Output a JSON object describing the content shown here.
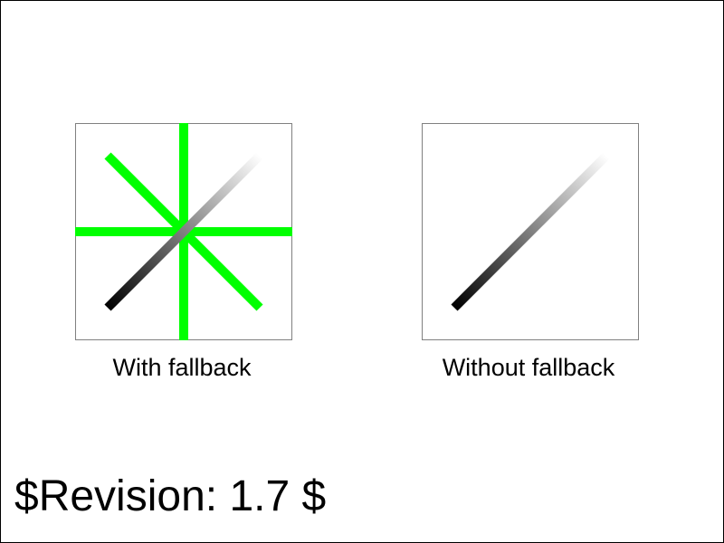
{
  "panels": {
    "left": {
      "caption": "With fallback",
      "fallback_color": "#00ff00"
    },
    "right": {
      "caption": "Without fallback"
    }
  },
  "gradient_colors": [
    "#000000",
    "#ffffff"
  ],
  "frame_color": "#000000",
  "box_border_color": "#808080",
  "revision": "$Revision: 1.7 $"
}
